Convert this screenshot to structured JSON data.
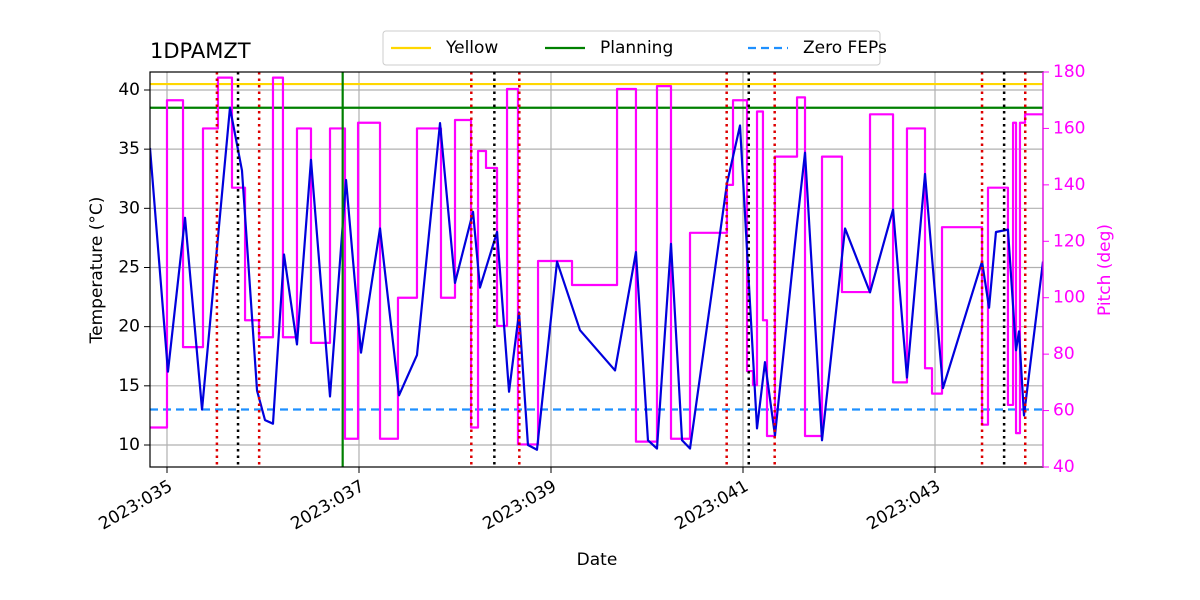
{
  "chart_data": {
    "type": "line",
    "title": "1DPAMZT",
    "xlabel": "Date",
    "ylabel": "Temperature (°C)",
    "y2label": "Pitch (deg)",
    "xlim": [
      34.823,
      44.125
    ],
    "xticks": [
      {
        "value": 35,
        "label": "2023:035"
      },
      {
        "value": 37,
        "label": "2023:037"
      },
      {
        "value": 39,
        "label": "2023:039"
      },
      {
        "value": 41,
        "label": "2023:041"
      },
      {
        "value": 43,
        "label": "2023:043"
      }
    ],
    "ylim": [
      8.14,
      41.52
    ],
    "yticks": [
      10,
      15,
      20,
      25,
      30,
      35,
      40
    ],
    "y2lim": [
      40,
      180
    ],
    "y2ticks": [
      40,
      60,
      80,
      100,
      120,
      140,
      160,
      180
    ],
    "y2color": "#ff00ff",
    "grid": true,
    "legend": "upper center",
    "series": [
      {
        "color": "#0000dd",
        "x": [
          34.823,
          35.01,
          35.188,
          35.365,
          35.656,
          35.781,
          35.938,
          36.021,
          36.104,
          36.219,
          36.354,
          36.5,
          36.698,
          36.865,
          37.021,
          37.219,
          37.417,
          37.604,
          37.844,
          38.0,
          38.188,
          38.26,
          38.438,
          38.563,
          38.667,
          38.76,
          38.854,
          39.063,
          39.302,
          39.667,
          39.885,
          40.01,
          40.104,
          40.25,
          40.365,
          40.448,
          40.833,
          40.969,
          41.146,
          41.229,
          41.333,
          41.563,
          41.646,
          41.823,
          42.063,
          42.323,
          42.563,
          42.708,
          42.896,
          43.083,
          43.49,
          43.563,
          43.635,
          43.76,
          43.844,
          43.875,
          43.927,
          44.125
        ],
        "values": [
          35.1,
          16.2,
          29.2,
          13.0,
          38.5,
          33.2,
          14.6,
          12.1,
          11.8,
          26.1,
          18.5,
          34.1,
          14.1,
          32.4,
          17.8,
          28.3,
          14.2,
          17.6,
          37.2,
          23.7,
          29.7,
          23.3,
          28.0,
          14.5,
          21.2,
          10.0,
          9.6,
          25.5,
          19.7,
          16.3,
          26.3,
          10.4,
          9.7,
          27.0,
          10.4,
          9.7,
          32.1,
          37.0,
          11.4,
          17.0,
          10.8,
          28.7,
          34.7,
          10.4,
          28.3,
          22.9,
          29.9,
          15.7,
          32.9,
          14.8,
          25.5,
          21.6,
          28.0,
          28.2,
          18.0,
          19.6,
          12.5,
          25.5
        ]
      },
      {
        "color": "#ff00ff",
        "axis": "y2",
        "step": "post",
        "x": [
          34.823,
          35.0,
          35.167,
          35.375,
          35.531,
          35.677,
          35.813,
          35.958,
          36.104,
          36.208,
          36.354,
          36.5,
          36.698,
          36.854,
          36.99,
          37.219,
          37.406,
          37.604,
          37.854,
          38.0,
          38.167,
          38.24,
          38.323,
          38.438,
          38.542,
          38.656,
          38.865,
          39.219,
          39.688,
          39.885,
          40.104,
          40.25,
          40.448,
          40.833,
          40.896,
          41.042,
          41.104,
          41.146,
          41.208,
          41.25,
          41.333,
          41.563,
          41.646,
          41.823,
          42.031,
          42.323,
          42.563,
          42.708,
          42.896,
          42.969,
          43.073,
          43.49,
          43.552,
          43.76,
          43.813,
          43.844,
          43.885,
          43.938
        ],
        "values": [
          54,
          170,
          82.5,
          160,
          178,
          139,
          92,
          86,
          178,
          86,
          160,
          84,
          160,
          50,
          162,
          50,
          100,
          160,
          100,
          163,
          54,
          152,
          146,
          90,
          174,
          48,
          113,
          104.5,
          174,
          49,
          175,
          50,
          123,
          140,
          170,
          74,
          69,
          166,
          92,
          51,
          150,
          171,
          51,
          150,
          102,
          165,
          70,
          160,
          75,
          66,
          125,
          55,
          139,
          62,
          162,
          52,
          162,
          165
        ]
      }
    ],
    "hlines": [
      {
        "name": "Yellow",
        "value": 40.5,
        "color": "#ffd700",
        "style": "solid"
      },
      {
        "name": "Planning",
        "value": 38.5,
        "color": "#008000",
        "style": "solid"
      },
      {
        "name": "Zero FEPs",
        "value": 13,
        "color": "#1e90ff",
        "style": "dashed"
      }
    ],
    "vlines": [
      {
        "x": 36.83,
        "color": "#008000",
        "style": "solid"
      },
      {
        "x": 35.52,
        "color": "#dd0000",
        "style": "dotted"
      },
      {
        "x": 35.96,
        "color": "#dd0000",
        "style": "dotted"
      },
      {
        "x": 38.17,
        "color": "#dd0000",
        "style": "dotted"
      },
      {
        "x": 38.67,
        "color": "#dd0000",
        "style": "dotted"
      },
      {
        "x": 40.83,
        "color": "#dd0000",
        "style": "dotted"
      },
      {
        "x": 41.33,
        "color": "#dd0000",
        "style": "dotted"
      },
      {
        "x": 43.49,
        "color": "#dd0000",
        "style": "dotted"
      },
      {
        "x": 43.94,
        "color": "#dd0000",
        "style": "dotted"
      },
      {
        "x": 35.74,
        "color": "#000000",
        "style": "dotted"
      },
      {
        "x": 38.41,
        "color": "#000000",
        "style": "dotted"
      },
      {
        "x": 41.06,
        "color": "#000000",
        "style": "dotted"
      },
      {
        "x": 43.72,
        "color": "#000000",
        "style": "dotted"
      }
    ]
  }
}
